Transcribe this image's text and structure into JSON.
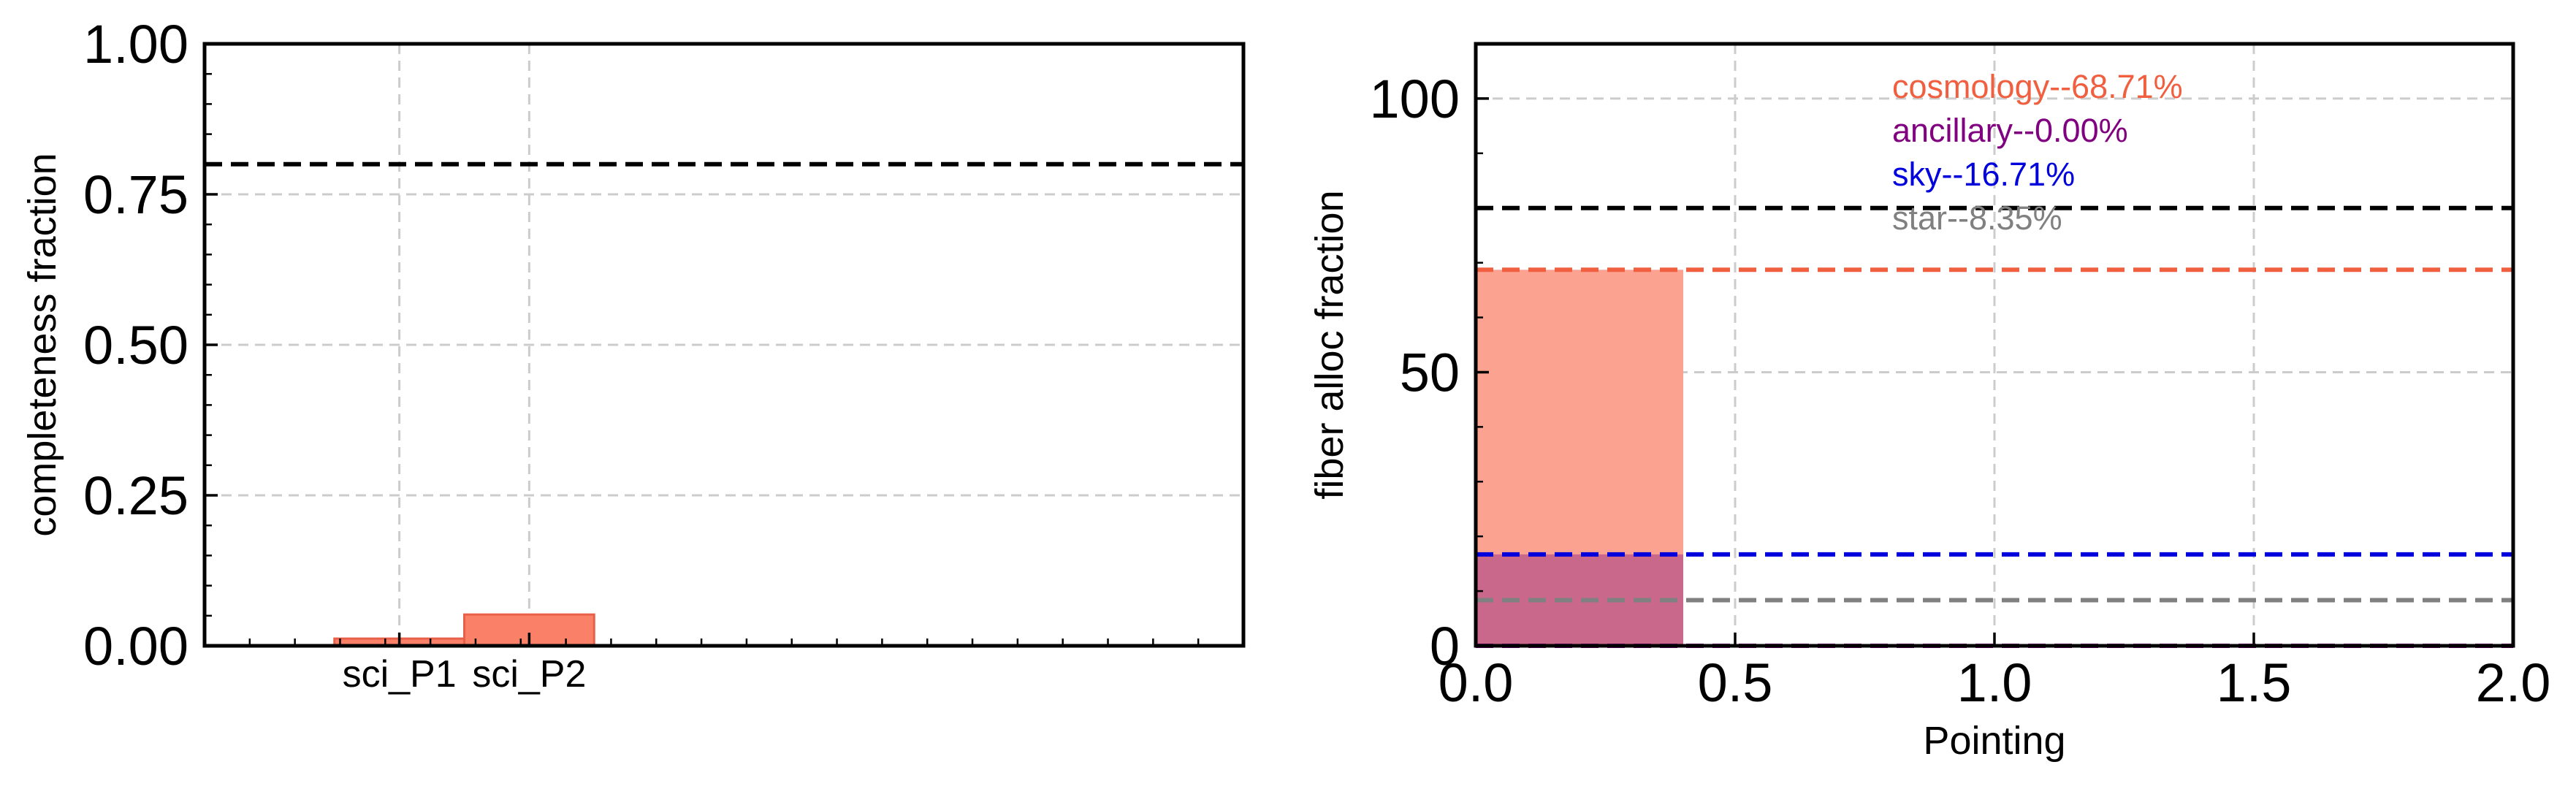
{
  "chart_data": [
    {
      "type": "bar",
      "categories": [
        "sci_P1",
        "sci_P2"
      ],
      "values": [
        0.012,
        0.052
      ],
      "xlabel": "",
      "ylabel": "completeness fraction",
      "ylim": [
        0,
        1.0
      ],
      "yticks": [
        0.0,
        0.25,
        0.5,
        0.75,
        1.0
      ],
      "ytick_labels": [
        "0.00",
        "0.25",
        "0.50",
        "0.75",
        "1.00"
      ],
      "reference_line": 0.8,
      "grid": true,
      "colors": {
        "bar_fill": "#fa8067",
        "bar_edge": "#e9604a",
        "reference": "#000000"
      }
    },
    {
      "type": "bar",
      "xlabel": "Pointing",
      "ylabel": "fiber alloc fraction",
      "xlim": [
        0.0,
        2.0
      ],
      "ylim": [
        0,
        110
      ],
      "xticks": [
        0.0,
        0.5,
        1.0,
        1.5,
        2.0
      ],
      "xtick_labels": [
        "0.0",
        "0.5",
        "1.0",
        "1.5",
        "2.0"
      ],
      "yticks": [
        0,
        50,
        100
      ],
      "ytick_labels": [
        "0",
        "50",
        "100"
      ],
      "bar_width": 0.4,
      "series": [
        {
          "name": "cosmology",
          "values": [
            68.71
          ],
          "label": "cosmology--68.71%",
          "color": "#f06040",
          "fill": "#fba291"
        },
        {
          "name": "ancillary",
          "values": [
            0.0
          ],
          "label": "ancillary--0.00%",
          "color": "#800080"
        },
        {
          "name": "sky",
          "values": [
            16.71
          ],
          "label": "sky--16.71%",
          "color": "#0000dd",
          "fill": "#c9688a"
        },
        {
          "name": "star",
          "values": [
            8.35
          ],
          "label": "star--8.35%",
          "color": "#808080"
        }
      ],
      "reference_line": 80,
      "reference_color": "#000000",
      "grid": true,
      "legend_position": "top-center"
    }
  ]
}
